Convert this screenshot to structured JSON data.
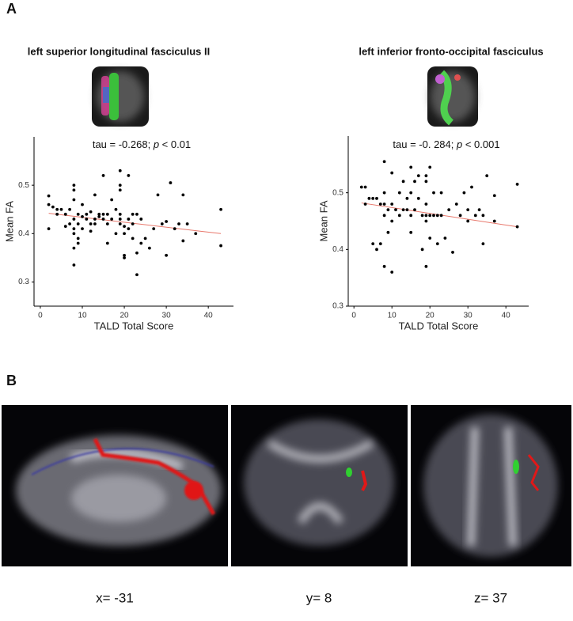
{
  "panel_a_label": "A",
  "panel_b_label": "B",
  "slice_labels": [
    "x= -31",
    "y= 8",
    "z= 37"
  ],
  "chart_data": [
    {
      "type": "scatter",
      "title": "left superior longitudinal fasciculus II",
      "annotation": [
        "tau = -0.268; ",
        "p",
        " < 0.01"
      ],
      "x_label": "TALD Total Score",
      "y_label": "Mean FA",
      "color": "#000000",
      "xlim": [
        -1.5,
        46
      ],
      "ylim": [
        0.25,
        0.6
      ],
      "xticks": [
        0,
        10,
        20,
        30,
        40
      ],
      "yticks": [
        0.3,
        0.4,
        0.5
      ],
      "x": [
        2,
        2,
        2,
        3,
        4,
        4,
        5,
        6,
        6,
        7,
        7,
        8,
        8,
        8,
        8,
        8,
        8,
        8,
        8,
        9,
        9,
        9,
        9,
        10,
        10,
        10,
        11,
        11,
        12,
        12,
        12,
        13,
        13,
        13,
        14,
        14,
        15,
        15,
        15,
        16,
        16,
        16,
        17,
        17,
        18,
        18,
        19,
        19,
        19,
        19,
        19,
        19,
        20,
        20,
        20,
        20,
        21,
        21,
        21,
        22,
        22,
        22,
        23,
        23,
        23,
        24,
        24,
        25,
        26,
        27,
        28,
        29,
        30,
        30,
        31,
        32,
        33,
        34,
        34,
        35,
        37,
        43,
        43
      ],
      "values": [
        0.478,
        0.46,
        0.41,
        0.455,
        0.45,
        0.44,
        0.45,
        0.415,
        0.44,
        0.42,
        0.45,
        0.5,
        0.49,
        0.47,
        0.43,
        0.41,
        0.4,
        0.335,
        0.37,
        0.44,
        0.42,
        0.39,
        0.38,
        0.46,
        0.435,
        0.41,
        0.44,
        0.43,
        0.445,
        0.42,
        0.405,
        0.48,
        0.42,
        0.43,
        0.44,
        0.435,
        0.52,
        0.44,
        0.43,
        0.44,
        0.42,
        0.38,
        0.47,
        0.43,
        0.45,
        0.4,
        0.53,
        0.5,
        0.49,
        0.44,
        0.43,
        0.42,
        0.415,
        0.4,
        0.355,
        0.35,
        0.52,
        0.43,
        0.41,
        0.44,
        0.42,
        0.39,
        0.44,
        0.36,
        0.315,
        0.43,
        0.38,
        0.39,
        0.37,
        0.41,
        0.48,
        0.42,
        0.425,
        0.355,
        0.505,
        0.41,
        0.42,
        0.385,
        0.48,
        0.42,
        0.4,
        0.45,
        0.375
      ],
      "fit": {
        "x": [
          2,
          43
        ],
        "values": [
          0.442,
          0.4
        ],
        "color": "#e8776b"
      }
    },
    {
      "type": "scatter",
      "title": "left inferior fronto-occipital fasciculus",
      "annotation": [
        "tau = -0. 284; ",
        "p",
        " < 0.001"
      ],
      "x_label": "TALD Total Score",
      "y_label": "Mean FA",
      "color": "#000000",
      "xlim": [
        -1.5,
        46
      ],
      "ylim": [
        0.3,
        0.6
      ],
      "xticks": [
        0,
        10,
        20,
        30,
        40
      ],
      "yticks": [
        0.3,
        0.4,
        0.5
      ],
      "x": [
        2,
        3,
        3,
        4,
        5,
        5,
        6,
        6,
        7,
        7,
        8,
        8,
        8,
        8,
        8,
        9,
        9,
        10,
        10,
        10,
        10,
        11,
        12,
        12,
        13,
        13,
        14,
        14,
        15,
        15,
        15,
        15,
        16,
        16,
        17,
        17,
        18,
        18,
        19,
        19,
        19,
        19,
        19,
        19,
        20,
        20,
        20,
        21,
        21,
        22,
        22,
        23,
        23,
        24,
        25,
        26,
        27,
        28,
        29,
        30,
        30,
        31,
        32,
        33,
        34,
        34,
        35,
        37,
        37,
        43,
        43
      ],
      "values": [
        0.51,
        0.51,
        0.48,
        0.49,
        0.49,
        0.41,
        0.49,
        0.4,
        0.48,
        0.41,
        0.555,
        0.5,
        0.48,
        0.46,
        0.37,
        0.47,
        0.43,
        0.535,
        0.48,
        0.45,
        0.36,
        0.47,
        0.5,
        0.46,
        0.52,
        0.47,
        0.49,
        0.47,
        0.545,
        0.5,
        0.46,
        0.43,
        0.52,
        0.47,
        0.53,
        0.49,
        0.46,
        0.4,
        0.53,
        0.52,
        0.48,
        0.46,
        0.45,
        0.37,
        0.545,
        0.46,
        0.42,
        0.5,
        0.46,
        0.46,
        0.41,
        0.5,
        0.46,
        0.42,
        0.47,
        0.395,
        0.48,
        0.46,
        0.5,
        0.47,
        0.45,
        0.51,
        0.46,
        0.47,
        0.46,
        0.41,
        0.53,
        0.45,
        0.495,
        0.515,
        0.44
      ],
      "fit": {
        "x": [
          2,
          43
        ],
        "values": [
          0.482,
          0.44
        ],
        "color": "#e8776b"
      }
    }
  ]
}
